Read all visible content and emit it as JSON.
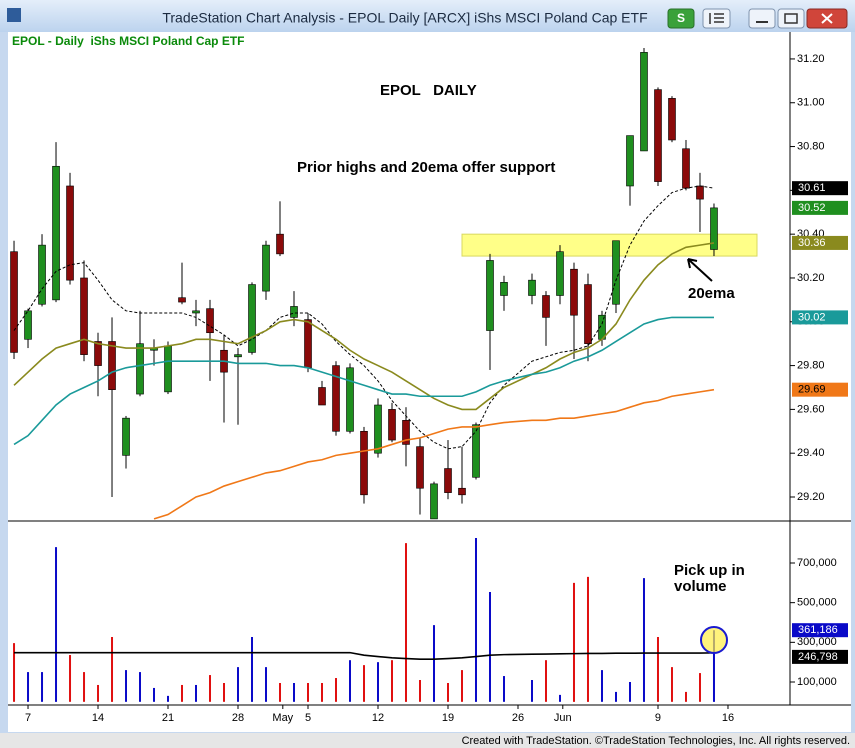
{
  "window_title": "TradeStation Chart Analysis - EPOL Daily [ARCX] iShs MSCI Poland Cap ETF",
  "window_button": "S",
  "footer": "Created with TradeStation. ©TradeStation Technologies, Inc. All rights reserved.",
  "chart_data": {
    "type": "candlestick",
    "title": "EPOL - Daily  iShs MSCI Poland Cap ETF",
    "annotations": {
      "heading": "EPOL   DAILY",
      "support": "Prior highs and 20ema offer support",
      "ema": "20ema",
      "volume": [
        "Pick up in",
        "volume"
      ]
    },
    "support_zone": [
      30.3,
      30.4
    ],
    "xlim": [
      -0.43,
      55.43
    ],
    "xticks": [
      {
        "value": 1,
        "label": "7"
      },
      {
        "value": 6,
        "label": "14"
      },
      {
        "value": 11,
        "label": "21"
      },
      {
        "value": 16,
        "label": "28"
      },
      {
        "value": 19.2,
        "label": "May"
      },
      {
        "value": 21,
        "label": "5"
      },
      {
        "value": 26,
        "label": "12"
      },
      {
        "value": 31,
        "label": "19"
      },
      {
        "value": 36,
        "label": "26"
      },
      {
        "value": 39.2,
        "label": "Jun"
      },
      {
        "value": 46,
        "label": "9"
      },
      {
        "value": 51,
        "label": "16"
      }
    ],
    "ylim": [
      29.095,
      31.323
    ],
    "yticks": [
      {
        "value": 29.2,
        "label": "29.20"
      },
      {
        "value": 29.4,
        "label": "29.40"
      },
      {
        "value": 29.6,
        "label": "29.60"
      },
      {
        "value": 29.8,
        "label": "29.80"
      },
      {
        "value": 30.0,
        "label": "30.00"
      },
      {
        "value": 30.2,
        "label": "30.20"
      },
      {
        "value": 30.4,
        "label": "30.40"
      },
      {
        "value": 30.6,
        "label": "30.60"
      },
      {
        "value": 30.8,
        "label": "30.80"
      },
      {
        "value": 31.0,
        "label": "31.00"
      },
      {
        "value": 31.2,
        "label": "31.20"
      }
    ],
    "up_color": "#1f8f1f",
    "down_color": "#8b0a0a",
    "x": [
      0,
      1,
      2,
      3,
      4,
      5,
      6,
      7,
      8,
      9,
      10,
      11,
      12,
      13,
      14,
      15,
      16,
      17,
      18,
      19,
      20,
      21,
      22,
      23,
      24,
      25,
      26,
      27,
      28,
      29,
      30,
      31,
      32,
      33,
      34,
      35,
      37,
      38,
      39,
      40,
      41,
      42,
      43,
      44,
      45,
      46,
      47,
      48,
      49,
      50
    ],
    "open": [
      30.32,
      29.92,
      30.08,
      30.1,
      30.62,
      30.2,
      29.91,
      29.91,
      29.39,
      29.67,
      29.87,
      29.68,
      30.11,
      30.04,
      30.06,
      29.87,
      29.84,
      29.86,
      30.14,
      30.4,
      30.02,
      30.01,
      29.7,
      29.8,
      29.5,
      29.5,
      29.4,
      29.6,
      29.55,
      29.43,
      29.1,
      29.33,
      29.24,
      29.29,
      29.96,
      30.12,
      30.12,
      30.12,
      30.12,
      30.24,
      30.17,
      29.92,
      30.08,
      30.62,
      30.78,
      31.06,
      31.02,
      30.79,
      30.62,
      30.33
    ],
    "high": [
      30.37,
      30.06,
      30.4,
      30.82,
      30.68,
      30.28,
      29.95,
      30.02,
      29.57,
      30.05,
      29.92,
      29.91,
      30.27,
      30.1,
      30.1,
      29.94,
      29.88,
      30.18,
      30.37,
      30.55,
      30.14,
      30.04,
      29.73,
      29.82,
      29.81,
      29.52,
      29.65,
      29.63,
      29.61,
      29.47,
      29.27,
      29.46,
      29.43,
      29.54,
      30.31,
      30.21,
      30.22,
      30.14,
      30.35,
      30.27,
      30.22,
      30.05,
      30.37,
      30.85,
      31.25,
      31.07,
      31.03,
      30.83,
      30.68,
      30.54
    ],
    "low": [
      29.83,
      29.88,
      30.07,
      30.09,
      30.17,
      29.82,
      29.66,
      29.2,
      29.33,
      29.66,
      29.8,
      29.67,
      30.08,
      29.98,
      29.73,
      29.54,
      29.53,
      29.85,
      30.1,
      30.3,
      29.98,
      29.77,
      29.62,
      29.48,
      29.49,
      29.17,
      29.38,
      29.45,
      29.34,
      29.12,
      29.1,
      29.19,
      29.17,
      29.28,
      29.78,
      30.05,
      30.08,
      29.89,
      30.08,
      29.83,
      29.82,
      29.89,
      30.04,
      30.53,
      30.78,
      30.62,
      30.82,
      30.6,
      30.41,
      30.3
    ],
    "close": [
      29.86,
      30.05,
      30.35,
      30.71,
      30.19,
      29.85,
      29.8,
      29.69,
      29.56,
      29.9,
      29.88,
      29.89,
      30.09,
      30.05,
      29.95,
      29.77,
      29.85,
      30.17,
      30.35,
      30.31,
      30.07,
      29.79,
      29.62,
      29.5,
      29.79,
      29.21,
      29.62,
      29.46,
      29.44,
      29.24,
      29.26,
      29.22,
      29.21,
      29.53,
      30.28,
      30.18,
      30.19,
      30.02,
      30.32,
      30.03,
      29.9,
      30.03,
      30.37,
      30.85,
      31.23,
      30.64,
      30.83,
      30.61,
      30.56,
      30.52
    ],
    "close_label": "30.52",
    "series": [
      {
        "color": "#000000",
        "dash": true,
        "last_label": "30.61",
        "values": [
          29.96,
          30.05,
          30.15,
          30.23,
          30.26,
          30.27,
          30.19,
          30.1,
          30.05,
          30.04,
          30.04,
          30.04,
          30.04,
          30.02,
          29.98,
          29.94,
          29.89,
          29.92,
          29.96,
          30.02,
          30.04,
          30.04,
          29.99,
          29.91,
          29.85,
          29.8,
          29.73,
          29.64,
          29.57,
          29.5,
          29.45,
          29.42,
          29.43,
          29.5,
          29.63,
          29.71,
          29.82,
          29.84,
          29.86,
          29.87,
          29.89,
          29.99,
          30.19,
          30.35,
          30.46,
          30.53,
          30.59,
          30.61,
          30.62,
          30.61
        ]
      },
      {
        "color": "#8a8a1e",
        "dash": false,
        "last_label": "30.36",
        "values": [
          29.71,
          29.77,
          29.83,
          29.88,
          29.9,
          29.92,
          29.9,
          29.89,
          29.88,
          29.88,
          29.88,
          29.89,
          29.9,
          29.92,
          29.92,
          29.91,
          29.9,
          29.93,
          29.96,
          30.0,
          30.01,
          30.0,
          29.96,
          29.92,
          29.87,
          29.83,
          29.8,
          29.77,
          29.73,
          29.69,
          29.65,
          29.62,
          29.6,
          29.6,
          29.65,
          29.7,
          29.76,
          29.79,
          29.83,
          29.86,
          29.88,
          29.92,
          29.99,
          30.1,
          30.19,
          30.26,
          30.31,
          30.34,
          30.35,
          30.36
        ]
      },
      {
        "color": "#1a9a9a",
        "dash": false,
        "last_label": "30.02",
        "values": [
          29.44,
          29.48,
          29.55,
          29.62,
          29.67,
          29.7,
          29.73,
          29.77,
          29.79,
          29.8,
          29.81,
          29.82,
          29.82,
          29.82,
          29.82,
          29.82,
          29.81,
          29.81,
          29.81,
          29.8,
          29.8,
          29.79,
          29.77,
          29.75,
          29.73,
          29.71,
          29.69,
          29.67,
          29.67,
          29.66,
          29.66,
          29.66,
          29.66,
          29.68,
          29.71,
          29.73,
          29.76,
          29.77,
          29.79,
          29.82,
          29.84,
          29.87,
          29.91,
          29.95,
          29.99,
          30.01,
          30.02,
          30.02,
          30.02,
          30.02
        ]
      },
      {
        "color": "#f07818",
        "dash": false,
        "last_label": "29.69",
        "values": [
          null,
          null,
          null,
          null,
          null,
          null,
          null,
          null,
          null,
          null,
          29.1,
          29.12,
          29.16,
          29.2,
          29.22,
          29.25,
          29.27,
          29.29,
          29.31,
          29.32,
          29.34,
          29.36,
          29.37,
          29.39,
          29.4,
          29.41,
          29.42,
          29.44,
          29.46,
          29.47,
          29.49,
          29.51,
          29.52,
          29.52,
          29.53,
          29.54,
          29.55,
          29.55,
          29.56,
          29.56,
          29.57,
          29.58,
          29.59,
          29.61,
          29.63,
          29.64,
          29.66,
          29.67,
          29.68,
          29.69
        ]
      }
    ],
    "volume": {
      "ylim": [
        -16000,
        906700
      ],
      "yticks": [
        {
          "value": 100000,
          "label": "100,000"
        },
        {
          "value": 300000,
          "label": "300,000"
        },
        {
          "value": 500000,
          "label": "500,000"
        },
        {
          "value": 700000,
          "label": "700,000"
        }
      ],
      "up_color": "#0a0ac8",
      "down_color": "#e01010",
      "values": [
        296000,
        150000,
        150000,
        780000,
        236000,
        150000,
        85000,
        327000,
        160000,
        150000,
        70000,
        30000,
        85000,
        85000,
        135000,
        95000,
        175000,
        327000,
        175000,
        95000,
        95000,
        95000,
        95000,
        120000,
        210000,
        185000,
        200000,
        210000,
        800000,
        110000,
        387000,
        95000,
        160000,
        826000,
        554000,
        130000,
        110000,
        210000,
        35000,
        600000,
        630000,
        160000,
        50000,
        100000,
        624000,
        327000,
        175000,
        50000,
        145000,
        361186
      ],
      "last_label": "361,186",
      "average": {
        "color": "#000000",
        "last_label": "246,798",
        "values": [
          248000,
          248000,
          248000,
          248000,
          248000,
          248000,
          248000,
          248000,
          248000,
          248000,
          248000,
          248000,
          248000,
          248000,
          248000,
          248000,
          248000,
          248000,
          248000,
          248000,
          248000,
          248000,
          248000,
          248000,
          248000,
          235000,
          228000,
          222000,
          218000,
          215000,
          215000,
          218000,
          222000,
          228000,
          235000,
          238000,
          240000,
          241000,
          242000,
          243000,
          244000,
          244000,
          245000,
          245000,
          246000,
          246000,
          246000,
          246000,
          246000,
          246798
        ]
      }
    }
  }
}
